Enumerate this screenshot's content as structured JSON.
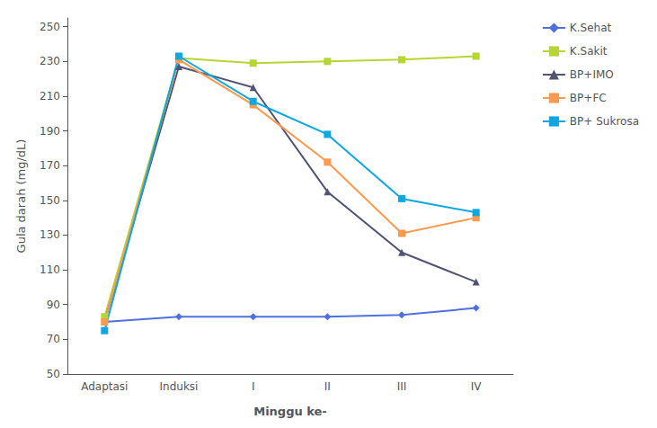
{
  "chart_data": {
    "type": "line",
    "xlabel": "Minggu ke-",
    "ylabel": "Gula darah (mg/dL)",
    "categories": [
      "Adaptasi",
      "Induksi",
      "I",
      "II",
      "III",
      "IV"
    ],
    "series": [
      {
        "name": "K.Sehat",
        "values": [
          80,
          83,
          83,
          83,
          84,
          88
        ],
        "marker": "diamond",
        "line_style": "solid"
      },
      {
        "name": "K.Sakit",
        "values": [
          83,
          232,
          229,
          230,
          231,
          233
        ],
        "marker": "square",
        "line_style": "solid"
      },
      {
        "name": "BP+IMO",
        "values": [
          80,
          227,
          215,
          155,
          120,
          103
        ],
        "marker": "triangle",
        "line_style": "solid"
      },
      {
        "name": "BP+FC",
        "values": [
          80,
          231,
          205,
          172,
          131,
          140
        ],
        "marker": "square",
        "line_style": "solid"
      },
      {
        "name": "BP+ Sukrosa",
        "values": [
          75,
          233,
          207,
          188,
          151,
          143
        ],
        "marker": "square",
        "line_style": "solid"
      }
    ],
    "ylim": [
      50,
      255
    ],
    "yticks": [
      50,
      70,
      90,
      110,
      130,
      150,
      170,
      190,
      210,
      230,
      250
    ],
    "grid": false,
    "legend": "right"
  }
}
